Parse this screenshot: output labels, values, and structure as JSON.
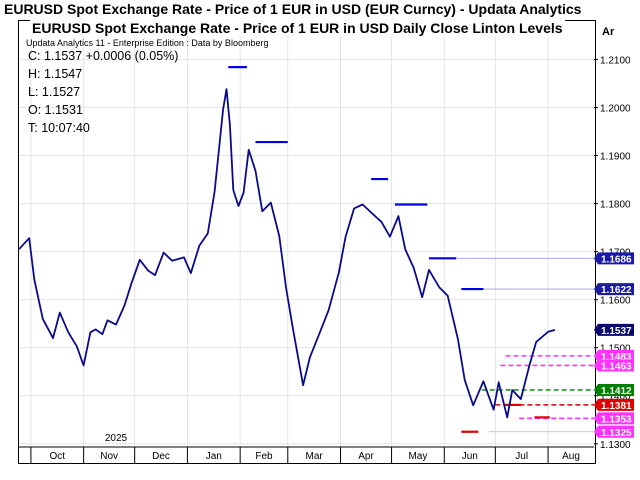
{
  "window_title": "EURUSD Spot Exchange Rate - Price of 1 EUR in USD (EUR Curncy) -  Updata Analytics",
  "chart_title": "EURUSD Spot Exchange Rate - Price of 1 EUR in USD Daily Close     Linton Levels",
  "subtitle": "Updata Analytics 11 - Enterprise Edition : Data by Bloomberg",
  "readout": {
    "close": "C: 1.1537  +0.0006 (0.05%)",
    "high": "H: 1.1547",
    "low": "L: 1.1527",
    "open": "O: 1.1531",
    "time": "T: 10:07:40"
  },
  "axis": {
    "year_label": "2025",
    "currency_label": "Ar",
    "yticks": [
      "1.2100",
      "1.2000",
      "1.1900",
      "1.1800",
      "1.1700",
      "1.1600",
      "1.1500",
      "1.1400",
      "1.1300"
    ]
  },
  "price_tags": [
    {
      "label": "1.1686",
      "color": "#1a1aa6",
      "text_color": "#ffffff"
    },
    {
      "label": "1.1622",
      "color": "#1a1aa6",
      "text_color": "#ffffff"
    },
    {
      "label": "1.1537",
      "color": "#0a0a6e",
      "text_color": "#ffffff"
    },
    {
      "label": "1.1483",
      "color": "#ff33ff",
      "text_color": "#ffffff"
    },
    {
      "label": "1.1463",
      "color": "#ff33ff",
      "text_color": "#ffffff"
    },
    {
      "label": "1.1412",
      "color": "#008000",
      "text_color": "#ffffff"
    },
    {
      "label": "1.1381",
      "color": "#e00000",
      "text_color": "#ffffff"
    },
    {
      "label": "1.1353",
      "color": "#ff33ff",
      "text_color": "#ffffff"
    },
    {
      "label": "1.1325",
      "color": "#ff33ff",
      "text_color": "#ffffff"
    }
  ],
  "chart_data": {
    "type": "line",
    "title": "EURUSD Spot Exchange Rate - Price of 1 EUR in USD Daily Close",
    "ylim": [
      1.126,
      1.218
    ],
    "x_range_months": [
      "2024-09-24",
      "2025-08-28"
    ],
    "month_labels": [
      "Oct",
      "Nov",
      "Dec",
      "Jan",
      "Feb",
      "Mar",
      "Apr",
      "May",
      "Jun",
      "Jul",
      "Aug"
    ],
    "series": [
      {
        "color": "#0a0a8c",
        "x": [
          "2024-09-24",
          "2024-09-30",
          "2024-10-03",
          "2024-10-08",
          "2024-10-14",
          "2024-10-18",
          "2024-10-23",
          "2024-10-28",
          "2024-11-01",
          "2024-11-05",
          "2024-11-08",
          "2024-11-12",
          "2024-11-15",
          "2024-11-20",
          "2024-11-25",
          "2024-11-29",
          "2024-12-04",
          "2024-12-09",
          "2024-12-13",
          "2024-12-18",
          "2024-12-23",
          "2024-12-30",
          "2025-01-03",
          "2025-01-08",
          "2025-01-13",
          "2025-01-17",
          "2025-01-22",
          "2025-01-24",
          "2025-01-26",
          "2025-01-28",
          "2025-01-31",
          "2025-02-03",
          "2025-02-06",
          "2025-02-10",
          "2025-02-14",
          "2025-02-19",
          "2025-02-24",
          "2025-02-28",
          "2025-03-04",
          "2025-03-10",
          "2025-03-14",
          "2025-03-20",
          "2025-03-25",
          "2025-03-31",
          "2025-04-04",
          "2025-04-09",
          "2025-04-14",
          "2025-04-21",
          "2025-04-25",
          "2025-04-30",
          "2025-05-05",
          "2025-05-09",
          "2025-05-14",
          "2025-05-19",
          "2025-05-23",
          "2025-05-29",
          "2025-06-03",
          "2025-06-09",
          "2025-06-13",
          "2025-06-18",
          "2025-06-24",
          "2025-06-30",
          "2025-07-03",
          "2025-07-08",
          "2025-07-11",
          "2025-07-16",
          "2025-07-21",
          "2025-07-25",
          "2025-07-30",
          "2025-08-01",
          "2025-08-05"
        ],
        "y": [
          1.1705,
          1.1728,
          1.1642,
          1.156,
          1.152,
          1.1573,
          1.1532,
          1.1503,
          1.1463,
          1.1532,
          1.1538,
          1.1528,
          1.1557,
          1.1548,
          1.1588,
          1.1633,
          1.1683,
          1.166,
          1.1651,
          1.1698,
          1.1681,
          1.1688,
          1.1655,
          1.1712,
          1.1738,
          1.1825,
          1.1996,
          1.2038,
          1.1964,
          1.1828,
          1.1795,
          1.1823,
          1.1912,
          1.1868,
          1.1784,
          1.1802,
          1.1732,
          1.1624,
          1.154,
          1.1422,
          1.148,
          1.1533,
          1.1578,
          1.1656,
          1.1731,
          1.179,
          1.1798,
          1.1775,
          1.1762,
          1.1731,
          1.1774,
          1.1705,
          1.1666,
          1.1605,
          1.1662,
          1.1626,
          1.1608,
          1.1518,
          1.1433,
          1.138,
          1.143,
          1.1371,
          1.1428,
          1.1355,
          1.1412,
          1.1393,
          1.1463,
          1.1512,
          1.1527,
          1.1533,
          1.1537
        ]
      }
    ],
    "levels": [
      {
        "y": 1.2084,
        "color": "#0000e0"
      },
      {
        "y": 1.1928,
        "color": "#0000e0"
      },
      {
        "y": 1.1851,
        "color": "#0000e0"
      },
      {
        "y": 1.1798,
        "color": "#0000e0"
      },
      {
        "y": 1.1686,
        "color": "#0000e0"
      },
      {
        "y": 1.1622,
        "color": "#0000e0"
      },
      {
        "y": 1.1483,
        "color": "#ff33ff"
      },
      {
        "y": 1.1463,
        "color": "#ff33ff"
      },
      {
        "y": 1.1412,
        "color": "#008000"
      },
      {
        "y": 1.1381,
        "color": "#e00000"
      },
      {
        "y": 1.1353,
        "color": "#ff33ff"
      },
      {
        "y": 1.1325,
        "color": "#e00000"
      }
    ]
  }
}
